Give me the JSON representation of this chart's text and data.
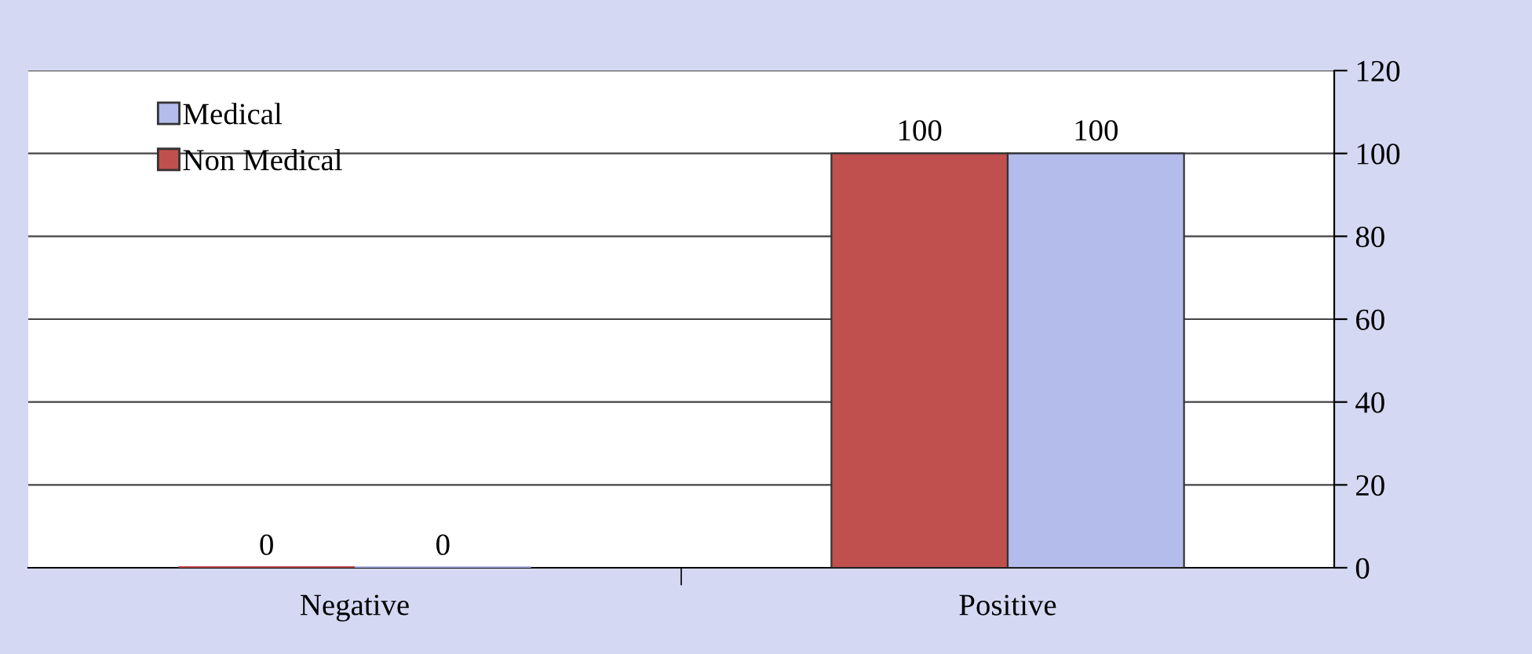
{
  "chart_data": {
    "type": "bar",
    "categories": [
      "Negative",
      "Positive"
    ],
    "series": [
      {
        "name": "Non Medical",
        "color": "#c0504d",
        "values": [
          0,
          100
        ]
      },
      {
        "name": "Medical",
        "color": "#b4bcec",
        "values": [
          0,
          100
        ]
      }
    ],
    "ylim": [
      0,
      120
    ],
    "yticks": [
      0,
      20,
      40,
      60,
      80,
      100,
      120
    ],
    "grid": "y",
    "legend": "top left",
    "data_labels": true
  }
}
